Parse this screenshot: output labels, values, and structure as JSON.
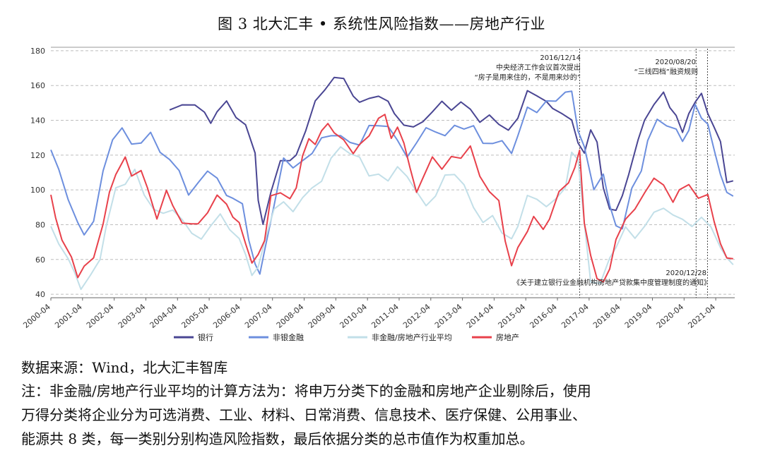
{
  "title": "图 3  北大汇丰 • 系统性风险指数——房地产行业",
  "source": "数据来源：Wind，北大汇丰智库",
  "note_lines": [
    "注：非金融/房地产行业平均的计算方法为：将申万分类下的金融和房地产企业剔除后，使用",
    "万得分类将企业分为可选消费、工业、材料、日常消费、信息技术、医疗保健、公用事业、",
    "能源共 8 类，每一类别分别构造风险指数，最后依据分类的总市值作为权重加总。"
  ],
  "chart_data": {
    "type": "line",
    "ylim": [
      38,
      182
    ],
    "yticks": [
      40,
      60,
      80,
      100,
      120,
      140,
      160,
      180
    ],
    "xlim": [
      2000.25,
      2021.85
    ],
    "xticks": [
      "2000-04",
      "2001-04",
      "2002-04",
      "2003-04",
      "2004-04",
      "2005-04",
      "2006-04",
      "2007-04",
      "2008-04",
      "2009-04",
      "2010-04",
      "2011-04",
      "2012-04",
      "2013-04",
      "2014-04",
      "2015-04",
      "2016-04",
      "2017-04",
      "2018-04",
      "2019-04",
      "2020-04",
      "2021-04"
    ],
    "grid": "horizontal dashed",
    "legend_position": "bottom-center",
    "series": [
      {
        "name": "银行",
        "color": "#4a4693",
        "x": [
          2004.0,
          2004.4,
          2004.8,
          2005.1,
          2005.3,
          2005.5,
          2005.8,
          2006.1,
          2006.4,
          2006.7,
          2006.8,
          2006.95,
          2007.2,
          2007.5,
          2007.8,
          2008.0,
          2008.3,
          2008.6,
          2008.9,
          2009.2,
          2009.5,
          2009.8,
          2010.0,
          2010.3,
          2010.6,
          2010.9,
          2011.1,
          2011.4,
          2011.7,
          2012.0,
          2012.3,
          2012.6,
          2012.9,
          2013.2,
          2013.5,
          2013.8,
          2014.1,
          2014.4,
          2014.7,
          2015.0,
          2015.3,
          2015.6,
          2015.9,
          2016.1,
          2016.4,
          2016.7,
          2016.9,
          2017.1,
          2017.3,
          2017.5,
          2017.7,
          2017.9,
          2018.1,
          2018.3,
          2018.5,
          2018.8,
          2019.0,
          2019.3,
          2019.6,
          2019.8,
          2020.0,
          2020.2,
          2020.4,
          2020.6,
          2020.8,
          2021.0,
          2021.2,
          2021.4,
          2021.6,
          2021.8
        ],
        "values": [
          146,
          148,
          150,
          144,
          138,
          146,
          150,
          142,
          138,
          120,
          95,
          80,
          98,
          118,
          116,
          120,
          135,
          150,
          158,
          165,
          163,
          155,
          150,
          152,
          155,
          150,
          144,
          138,
          135,
          140,
          145,
          150,
          147,
          150,
          146,
          140,
          142,
          138,
          135,
          140,
          158,
          154,
          150,
          148,
          143,
          140,
          128,
          120,
          135,
          128,
          100,
          90,
          88,
          96,
          110,
          128,
          140,
          150,
          155,
          148,
          143,
          132,
          145,
          150,
          155,
          145,
          135,
          128,
          105,
          104
        ]
      },
      {
        "name": "非银金融",
        "color": "#6d8fde",
        "x": [
          2000.25,
          2000.5,
          2000.8,
          2001.1,
          2001.3,
          2001.6,
          2001.9,
          2002.2,
          2002.5,
          2002.8,
          2003.1,
          2003.4,
          2003.7,
          2004.0,
          2004.3,
          2004.6,
          2004.9,
          2005.2,
          2005.5,
          2005.8,
          2006.0,
          2006.3,
          2006.5,
          2006.7,
          2006.85,
          2007.0,
          2007.3,
          2007.6,
          2007.9,
          2008.2,
          2008.5,
          2008.8,
          2009.1,
          2009.4,
          2009.7,
          2010.0,
          2010.3,
          2010.6,
          2010.9,
          2011.2,
          2011.5,
          2011.8,
          2012.1,
          2012.4,
          2012.7,
          2013.0,
          2013.3,
          2013.6,
          2013.9,
          2014.2,
          2014.5,
          2014.8,
          2015.0,
          2015.3,
          2015.6,
          2015.9,
          2016.2,
          2016.5,
          2016.7,
          2016.9,
          2017.1,
          2017.4,
          2017.7,
          2017.9,
          2018.1,
          2018.3,
          2018.6,
          2018.9,
          2019.1,
          2019.4,
          2019.7,
          2020.0,
          2020.2,
          2020.4,
          2020.6,
          2020.8,
          2021.0,
          2021.2,
          2021.4,
          2021.6,
          2021.8
        ],
        "values": [
          122,
          112,
          95,
          80,
          75,
          82,
          110,
          130,
          135,
          126,
          128,
          132,
          122,
          118,
          110,
          98,
          104,
          110,
          108,
          96,
          95,
          93,
          70,
          58,
          52,
          64,
          92,
          118,
          112,
          118,
          120,
          130,
          132,
          130,
          128,
          126,
          136,
          138,
          136,
          128,
          120,
          126,
          136,
          134,
          130,
          138,
          135,
          136,
          128,
          126,
          128,
          122,
          130,
          148,
          145,
          150,
          152,
          156,
          156,
          135,
          124,
          100,
          110,
          90,
          80,
          78,
          100,
          112,
          128,
          140,
          138,
          134,
          128,
          135,
          148,
          142,
          138,
          122,
          110,
          98,
          96
        ]
      },
      {
        "name": "非金融/房地产行业平均",
        "color": "#c2dfe8",
        "x": [
          2000.25,
          2000.5,
          2000.8,
          2001.0,
          2001.2,
          2001.5,
          2001.8,
          2002.0,
          2002.3,
          2002.6,
          2002.9,
          2003.2,
          2003.5,
          2003.8,
          2004.1,
          2004.4,
          2004.7,
          2005.0,
          2005.3,
          2005.6,
          2005.9,
          2006.2,
          2006.4,
          2006.6,
          2006.8,
          2007.0,
          2007.3,
          2007.6,
          2007.9,
          2008.2,
          2008.5,
          2008.8,
          2009.1,
          2009.4,
          2009.7,
          2010.0,
          2010.3,
          2010.6,
          2010.9,
          2011.2,
          2011.5,
          2011.8,
          2012.1,
          2012.4,
          2012.7,
          2013.0,
          2013.3,
          2013.6,
          2013.9,
          2014.2,
          2014.5,
          2014.8,
          2015.0,
          2015.3,
          2015.6,
          2015.9,
          2016.2,
          2016.5,
          2016.7,
          2016.9,
          2017.1,
          2017.3,
          2017.6,
          2017.9,
          2018.1,
          2018.4,
          2018.7,
          2019.0,
          2019.3,
          2019.6,
          2019.9,
          2020.2,
          2020.5,
          2020.8,
          2021.1,
          2021.4,
          2021.6,
          2021.8
        ],
        "values": [
          78,
          70,
          60,
          52,
          44,
          50,
          60,
          80,
          100,
          104,
          112,
          96,
          90,
          86,
          88,
          84,
          74,
          72,
          80,
          85,
          78,
          72,
          62,
          52,
          55,
          70,
          90,
          92,
          88,
          96,
          100,
          106,
          118,
          124,
          122,
          118,
          108,
          110,
          104,
          114,
          108,
          98,
          92,
          96,
          108,
          110,
          102,
          90,
          82,
          84,
          76,
          72,
          78,
          98,
          94,
          90,
          96,
          100,
          122,
          118,
          80,
          48,
          46,
          60,
          68,
          78,
          72,
          80,
          86,
          90,
          86,
          82,
          80,
          84,
          78,
          68,
          60,
          57
        ]
      },
      {
        "name": "房地产",
        "color": "#e8414b",
        "x": [
          2000.25,
          2000.4,
          2000.6,
          2000.9,
          2001.1,
          2001.3,
          2001.6,
          2001.9,
          2002.1,
          2002.3,
          2002.6,
          2002.8,
          2003.1,
          2003.3,
          2003.6,
          2003.9,
          2004.1,
          2004.4,
          2004.7,
          2004.9,
          2005.2,
          2005.5,
          2005.8,
          2006.0,
          2006.2,
          2006.4,
          2006.6,
          2006.8,
          2007.0,
          2007.2,
          2007.5,
          2007.8,
          2008.0,
          2008.2,
          2008.4,
          2008.6,
          2008.8,
          2009.0,
          2009.2,
          2009.5,
          2009.8,
          2010.0,
          2010.3,
          2010.6,
          2010.8,
          2011.0,
          2011.2,
          2011.4,
          2011.6,
          2011.8,
          2012.0,
          2012.3,
          2012.6,
          2012.9,
          2013.2,
          2013.5,
          2013.8,
          2014.1,
          2014.4,
          2014.6,
          2014.8,
          2015.0,
          2015.3,
          2015.5,
          2015.8,
          2016.0,
          2016.3,
          2016.6,
          2016.8,
          2016.95,
          2017.1,
          2017.3,
          2017.5,
          2017.7,
          2017.9,
          2018.1,
          2018.4,
          2018.7,
          2019.0,
          2019.3,
          2019.6,
          2019.9,
          2020.1,
          2020.4,
          2020.7,
          2021.0,
          2021.2,
          2021.4,
          2021.6,
          2021.8
        ],
        "values": [
          97,
          85,
          70,
          62,
          50,
          55,
          62,
          80,
          98,
          110,
          118,
          108,
          112,
          100,
          84,
          100,
          90,
          82,
          80,
          80,
          88,
          96,
          92,
          85,
          80,
          70,
          58,
          62,
          72,
          96,
          98,
          96,
          100,
          120,
          130,
          125,
          135,
          138,
          132,
          130,
          120,
          126,
          132,
          140,
          144,
          130,
          135,
          128,
          112,
          98,
          108,
          118,
          112,
          120,
          117,
          126,
          108,
          98,
          95,
          70,
          56,
          68,
          75,
          85,
          78,
          82,
          100,
          104,
          112,
          124,
          80,
          62,
          50,
          46,
          55,
          72,
          82,
          90,
          98,
          106,
          104,
          92,
          100,
          104,
          94,
          98,
          82,
          68,
          62,
          60
        ]
      }
    ],
    "annotations": {
      "a1_date": "2016/12/14",
      "a1_l1": "中央经济工作会议首次提出",
      "a1_l2": "“房子是用来住的，不是用来炒的”",
      "a2_date": "2020/08/20",
      "a2_text": "“三线四档”融资规则",
      "a3_date": "2020/12/28",
      "a3_text": "《关于建立银行业金融机构房地产贷款集中度管理制度的通知》"
    },
    "vlines": [
      2016.95,
      2020.63,
      2020.99
    ]
  }
}
